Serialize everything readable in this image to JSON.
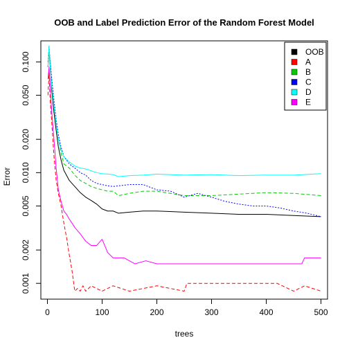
{
  "chart_data": {
    "type": "line",
    "title": "OOB and Label Prediction Error of the Random Forest Model",
    "xlabel": "trees",
    "ylabel": "Error",
    "xlim": [
      -12,
      512
    ],
    "ylim": [
      0.00072,
      0.155
    ],
    "y_scale": "log",
    "grid": false,
    "legend_position": "top-right",
    "x_ticks": [
      0,
      100,
      200,
      300,
      400,
      500
    ],
    "y_ticks": [
      0.001,
      0.002,
      0.005,
      0.01,
      0.02,
      0.05,
      0.1
    ],
    "y_tick_labels": [
      "0.001",
      "0.002",
      "0.005",
      "0.010",
      "0.020",
      "0.050",
      "0.100"
    ],
    "series": [
      {
        "name": "OOB",
        "color": "#000000",
        "dash": "solid",
        "x": [
          1,
          3,
          5,
          8,
          12,
          16,
          20,
          25,
          30,
          40,
          50,
          60,
          70,
          80,
          90,
          100,
          110,
          120,
          130,
          150,
          175,
          200,
          250,
          300,
          350,
          400,
          450,
          500
        ],
        "y": [
          0.09,
          0.13,
          0.09,
          0.055,
          0.035,
          0.024,
          0.017,
          0.013,
          0.0105,
          0.0085,
          0.0075,
          0.0066,
          0.006,
          0.0056,
          0.0052,
          0.0047,
          0.0045,
          0.0045,
          0.0043,
          0.0044,
          0.0045,
          0.0045,
          0.0044,
          0.0043,
          0.0042,
          0.0042,
          0.0041,
          0.004
        ]
      },
      {
        "name": "A",
        "color": "#ff0000",
        "dash": "dashed",
        "x": [
          1,
          3,
          5,
          8,
          12,
          16,
          20,
          25,
          30,
          35,
          40,
          45,
          50,
          55,
          60,
          65,
          70,
          80,
          100,
          120,
          150,
          200,
          250,
          255,
          300,
          350,
          400,
          420,
          450,
          470,
          500
        ],
        "y": [
          0.05,
          0.08,
          0.045,
          0.028,
          0.014,
          0.0085,
          0.0065,
          0.005,
          0.0035,
          0.0026,
          0.0018,
          0.0013,
          0.00085,
          0.0009,
          0.00085,
          0.00095,
          0.00085,
          0.00095,
          0.00085,
          0.00095,
          0.00085,
          0.00095,
          0.00085,
          0.001,
          0.001,
          0.001,
          0.001,
          0.001,
          0.00085,
          0.00095,
          0.00085
        ]
      },
      {
        "name": "B",
        "color": "#00cc00",
        "dash": "dashed",
        "x": [
          1,
          3,
          5,
          8,
          12,
          16,
          20,
          25,
          30,
          40,
          50,
          60,
          70,
          80,
          90,
          100,
          110,
          120,
          130,
          150,
          175,
          200,
          250,
          300,
          350,
          400,
          450,
          500
        ],
        "y": [
          0.09,
          0.13,
          0.1,
          0.06,
          0.04,
          0.028,
          0.02,
          0.015,
          0.012,
          0.011,
          0.0095,
          0.0085,
          0.008,
          0.0075,
          0.0072,
          0.007,
          0.0068,
          0.0068,
          0.0062,
          0.0065,
          0.0068,
          0.0068,
          0.0062,
          0.0062,
          0.0064,
          0.0066,
          0.0065,
          0.0062
        ]
      },
      {
        "name": "C",
        "color": "#0000ff",
        "dash": "dotted",
        "x": [
          1,
          3,
          5,
          8,
          12,
          16,
          20,
          25,
          30,
          40,
          50,
          60,
          70,
          80,
          90,
          100,
          110,
          120,
          150,
          175,
          200,
          225,
          250,
          275,
          300,
          325,
          350,
          375,
          400,
          425,
          450,
          475,
          500
        ],
        "y": [
          0.1,
          0.14,
          0.1,
          0.07,
          0.045,
          0.03,
          0.022,
          0.017,
          0.014,
          0.012,
          0.011,
          0.01,
          0.0095,
          0.0085,
          0.008,
          0.0078,
          0.0076,
          0.0075,
          0.0078,
          0.0078,
          0.007,
          0.0068,
          0.006,
          0.0065,
          0.006,
          0.0055,
          0.0052,
          0.005,
          0.005,
          0.0048,
          0.0045,
          0.0043,
          0.004
        ]
      },
      {
        "name": "D",
        "color": "#00ffff",
        "dash": "solid",
        "x": [
          1,
          3,
          5,
          8,
          12,
          16,
          20,
          25,
          30,
          40,
          50,
          60,
          70,
          80,
          90,
          100,
          110,
          120,
          130,
          150,
          175,
          200,
          250,
          300,
          350,
          400,
          450,
          500
        ],
        "y": [
          0.09,
          0.14,
          0.09,
          0.06,
          0.04,
          0.028,
          0.02,
          0.016,
          0.014,
          0.0125,
          0.0115,
          0.011,
          0.0108,
          0.0104,
          0.01,
          0.0098,
          0.0097,
          0.0096,
          0.0092,
          0.0094,
          0.0095,
          0.0097,
          0.0095,
          0.0096,
          0.0094,
          0.0095,
          0.0095,
          0.0098
        ]
      },
      {
        "name": "E",
        "color": "#ff00ff",
        "dash": "solid",
        "x": [
          1,
          3,
          5,
          8,
          12,
          16,
          20,
          25,
          30,
          35,
          40,
          45,
          50,
          60,
          70,
          80,
          90,
          100,
          110,
          120,
          140,
          160,
          180,
          200,
          250,
          300,
          350,
          400,
          450,
          465,
          470,
          500
        ],
        "y": [
          0.07,
          0.09,
          0.06,
          0.035,
          0.02,
          0.011,
          0.007,
          0.0055,
          0.0045,
          0.0042,
          0.0038,
          0.0035,
          0.0032,
          0.0028,
          0.0024,
          0.0022,
          0.0022,
          0.0025,
          0.0019,
          0.0017,
          0.0017,
          0.0015,
          0.0016,
          0.0015,
          0.0015,
          0.0015,
          0.0015,
          0.0015,
          0.0015,
          0.0015,
          0.0017,
          0.0017
        ]
      }
    ]
  }
}
